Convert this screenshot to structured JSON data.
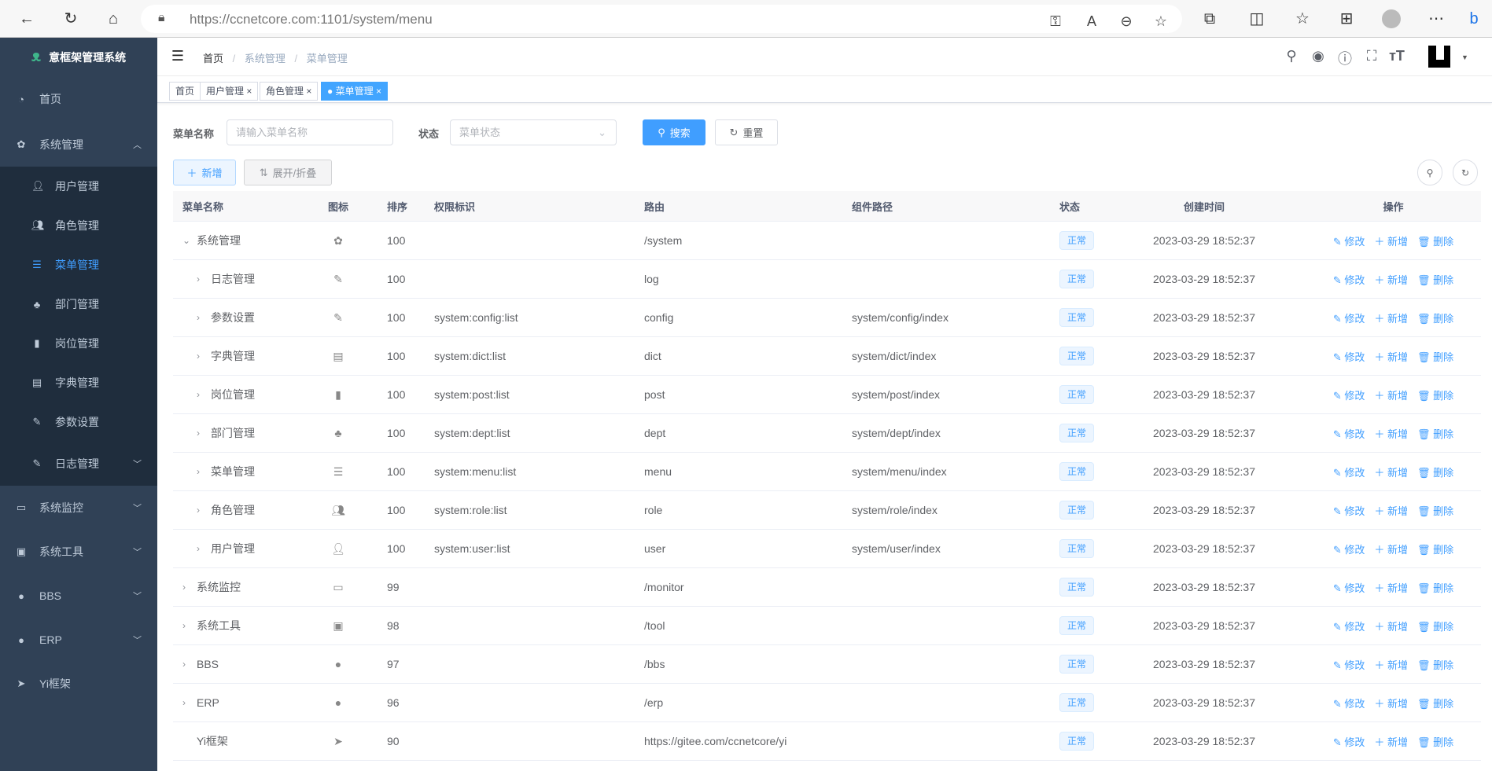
{
  "browser": {
    "url_host": "https://ccnetcore.com",
    "url_path": ":1101/system/menu"
  },
  "sidebar": {
    "title": "意框架管理系统",
    "items": [
      {
        "label": "首页",
        "icon": "dashboard-icon"
      },
      {
        "label": "系统管理",
        "icon": "gear-icon",
        "expanded": true
      },
      {
        "label": "用户管理",
        "icon": "user-icon",
        "sub": true
      },
      {
        "label": "角色管理",
        "icon": "peoples-icon",
        "sub": true
      },
      {
        "label": "菜单管理",
        "icon": "tree-table-icon",
        "sub": true,
        "active": true
      },
      {
        "label": "部门管理",
        "icon": "tree-icon",
        "sub": true
      },
      {
        "label": "岗位管理",
        "icon": "post-icon",
        "sub": true
      },
      {
        "label": "字典管理",
        "icon": "dict-icon",
        "sub": true
      },
      {
        "label": "参数设置",
        "icon": "edit-icon",
        "sub": true
      },
      {
        "label": "日志管理",
        "icon": "log-icon",
        "sub": true,
        "arrow": true
      },
      {
        "label": "系统监控",
        "icon": "monitor-icon",
        "arrow": true
      },
      {
        "label": "系统工具",
        "icon": "tool-icon",
        "arrow": true
      },
      {
        "label": "BBS",
        "icon": "globe-icon",
        "arrow": true
      },
      {
        "label": "ERP",
        "icon": "globe-icon",
        "arrow": true
      },
      {
        "label": "Yi框架",
        "icon": "send-icon"
      }
    ]
  },
  "header": {
    "breadcrumb": [
      "首页",
      "系统管理",
      "菜单管理"
    ]
  },
  "tags": [
    {
      "label": "首页"
    },
    {
      "label": "用户管理"
    },
    {
      "label": "角色管理"
    },
    {
      "label": "菜单管理",
      "active": true
    }
  ],
  "search": {
    "name_label": "菜单名称",
    "name_placeholder": "请输入菜单名称",
    "status_label": "状态",
    "status_placeholder": "菜单状态",
    "search_btn": "搜索",
    "reset_btn": "重置"
  },
  "toolbar": {
    "add": "新增",
    "toggle": "展开/折叠"
  },
  "table": {
    "columns": [
      "菜单名称",
      "图标",
      "排序",
      "权限标识",
      "路由",
      "组件路径",
      "状态",
      "创建时间",
      "操作"
    ],
    "actions": [
      "修改",
      "新增",
      "删除"
    ],
    "rows": [
      {
        "name": "系统管理",
        "icon": "gear-icon",
        "sort": "100",
        "perm": "",
        "route": "/system",
        "comp": "",
        "status": "正常",
        "time": "2023-03-29 18:52:37",
        "level": 0,
        "caret": "expanded"
      },
      {
        "name": "日志管理",
        "icon": "log-icon",
        "sort": "100",
        "perm": "",
        "route": "log",
        "comp": "",
        "status": "正常",
        "time": "2023-03-29 18:52:37",
        "level": 1,
        "caret": "collapsed"
      },
      {
        "name": "参数设置",
        "icon": "edit-icon",
        "sort": "100",
        "perm": "system:config:list",
        "route": "config",
        "comp": "system/config/index",
        "status": "正常",
        "time": "2023-03-29 18:52:37",
        "level": 1,
        "caret": "collapsed"
      },
      {
        "name": "字典管理",
        "icon": "dict-icon",
        "sort": "100",
        "perm": "system:dict:list",
        "route": "dict",
        "comp": "system/dict/index",
        "status": "正常",
        "time": "2023-03-29 18:52:37",
        "level": 1,
        "caret": "collapsed"
      },
      {
        "name": "岗位管理",
        "icon": "post-icon",
        "sort": "100",
        "perm": "system:post:list",
        "route": "post",
        "comp": "system/post/index",
        "status": "正常",
        "time": "2023-03-29 18:52:37",
        "level": 1,
        "caret": "collapsed"
      },
      {
        "name": "部门管理",
        "icon": "tree-icon",
        "sort": "100",
        "perm": "system:dept:list",
        "route": "dept",
        "comp": "system/dept/index",
        "status": "正常",
        "time": "2023-03-29 18:52:37",
        "level": 1,
        "caret": "collapsed"
      },
      {
        "name": "菜单管理",
        "icon": "tree-table-icon",
        "sort": "100",
        "perm": "system:menu:list",
        "route": "menu",
        "comp": "system/menu/index",
        "status": "正常",
        "time": "2023-03-29 18:52:37",
        "level": 1,
        "caret": "collapsed"
      },
      {
        "name": "角色管理",
        "icon": "peoples-icon",
        "sort": "100",
        "perm": "system:role:list",
        "route": "role",
        "comp": "system/role/index",
        "status": "正常",
        "time": "2023-03-29 18:52:37",
        "level": 1,
        "caret": "collapsed"
      },
      {
        "name": "用户管理",
        "icon": "user-icon",
        "sort": "100",
        "perm": "system:user:list",
        "route": "user",
        "comp": "system/user/index",
        "status": "正常",
        "time": "2023-03-29 18:52:37",
        "level": 1,
        "caret": "collapsed"
      },
      {
        "name": "系统监控",
        "icon": "monitor-icon",
        "sort": "99",
        "perm": "",
        "route": "/monitor",
        "comp": "",
        "status": "正常",
        "time": "2023-03-29 18:52:37",
        "level": 0,
        "caret": "collapsed"
      },
      {
        "name": "系统工具",
        "icon": "tool-icon",
        "sort": "98",
        "perm": "",
        "route": "/tool",
        "comp": "",
        "status": "正常",
        "time": "2023-03-29 18:52:37",
        "level": 0,
        "caret": "collapsed"
      },
      {
        "name": "BBS",
        "icon": "globe-icon",
        "sort": "97",
        "perm": "",
        "route": "/bbs",
        "comp": "",
        "status": "正常",
        "time": "2023-03-29 18:52:37",
        "level": 0,
        "caret": "collapsed"
      },
      {
        "name": "ERP",
        "icon": "globe-icon",
        "sort": "96",
        "perm": "",
        "route": "/erp",
        "comp": "",
        "status": "正常",
        "time": "2023-03-29 18:52:37",
        "level": 0,
        "caret": "collapsed"
      },
      {
        "name": "Yi框架",
        "icon": "send-icon",
        "sort": "90",
        "perm": "",
        "route": "https://gitee.com/ccnetcore/yi",
        "comp": "",
        "status": "正常",
        "time": "2023-03-29 18:52:37",
        "level": 0,
        "caret": "none"
      }
    ]
  },
  "colors": {
    "sidebar_bg": "#304156",
    "submenu_bg": "#1f2d3d",
    "primary": "#409eff"
  }
}
